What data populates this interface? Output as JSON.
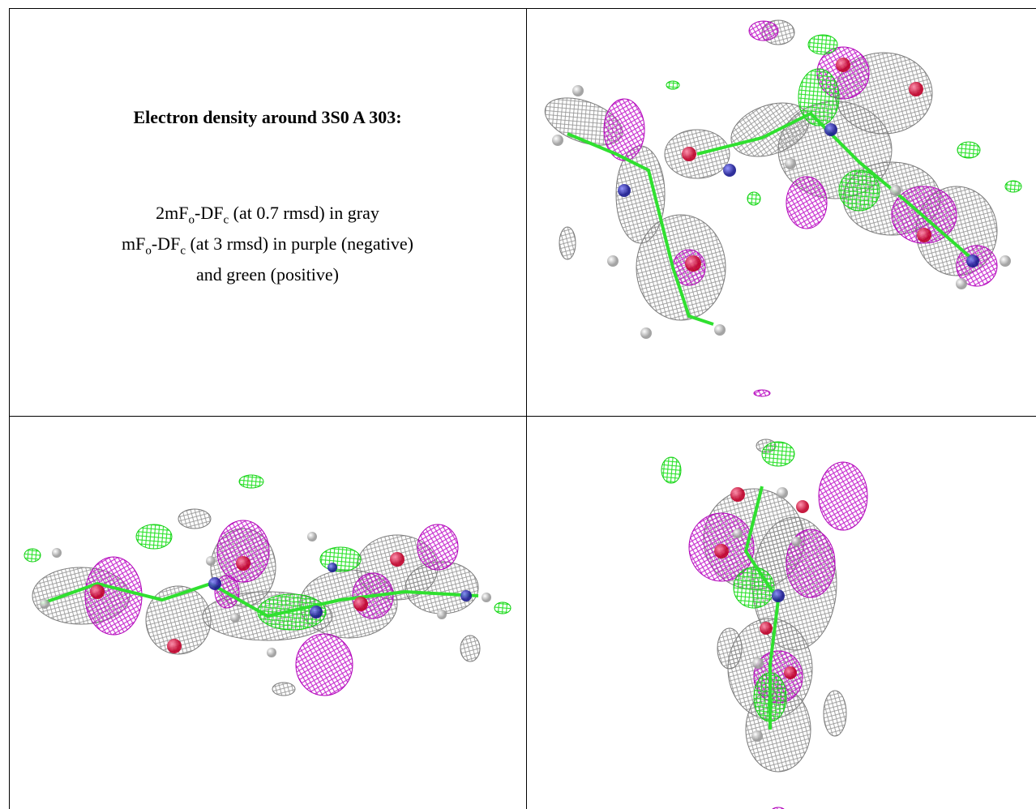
{
  "title": "Electron density around 3S0 A 303:",
  "legend_lines": [
    [
      "2mF",
      "o",
      "-DF",
      "c",
      " (at 0.7 rmsd) in gray"
    ],
    [
      "mF",
      "o",
      "-DF",
      "c",
      " (at 3 rmsd) in purple (negative)"
    ],
    [
      "and green (positive)"
    ]
  ]
}
